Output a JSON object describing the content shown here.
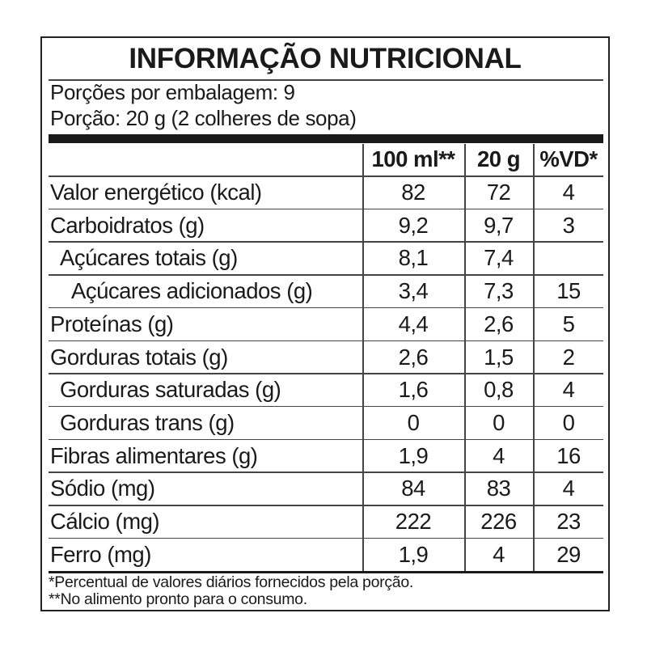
{
  "title": "INFORMAÇÃO NUTRICIONAL",
  "servings_per_package": "Porções por embalagem: 9",
  "serving_size": "Porção: 20 g (2 colheres de sopa)",
  "columns": [
    "100 ml**",
    "20 g",
    "%VD*"
  ],
  "rows": [
    {
      "label": "Valor energético (kcal)",
      "indent": 0,
      "v100": "82",
      "vportion": "72",
      "vd": "4"
    },
    {
      "label": "Carboidratos (g)",
      "indent": 0,
      "v100": "9,2",
      "vportion": "9,7",
      "vd": "3"
    },
    {
      "label": "Açúcares totais (g)",
      "indent": 1,
      "v100": "8,1",
      "vportion": "7,4",
      "vd": ""
    },
    {
      "label": "Açúcares adicionados (g)",
      "indent": 2,
      "v100": "3,4",
      "vportion": "7,3",
      "vd": "15"
    },
    {
      "label": "Proteínas (g)",
      "indent": 0,
      "v100": "4,4",
      "vportion": "2,6",
      "vd": "5"
    },
    {
      "label": "Gorduras totais (g)",
      "indent": 0,
      "v100": "2,6",
      "vportion": "1,5",
      "vd": "2"
    },
    {
      "label": "Gorduras saturadas (g)",
      "indent": 1,
      "v100": "1,6",
      "vportion": "0,8",
      "vd": "4"
    },
    {
      "label": "Gorduras trans (g)",
      "indent": 1,
      "v100": "0",
      "vportion": "0",
      "vd": "0"
    },
    {
      "label": "Fibras alimentares (g)",
      "indent": 0,
      "v100": "1,9",
      "vportion": "4",
      "vd": "16"
    },
    {
      "label": "Sódio (mg)",
      "indent": 0,
      "v100": "84",
      "vportion": "83",
      "vd": "4"
    },
    {
      "label": "Cálcio (mg)",
      "indent": 0,
      "v100": "222",
      "vportion": "226",
      "vd": "23"
    },
    {
      "label": "Ferro (mg)",
      "indent": 0,
      "v100": "1,9",
      "vportion": "4",
      "vd": "29"
    }
  ],
  "footnotes": [
    "*Percentual de valores diários fornecidos pela porção.",
    "**No alimento pronto para o consumo."
  ]
}
